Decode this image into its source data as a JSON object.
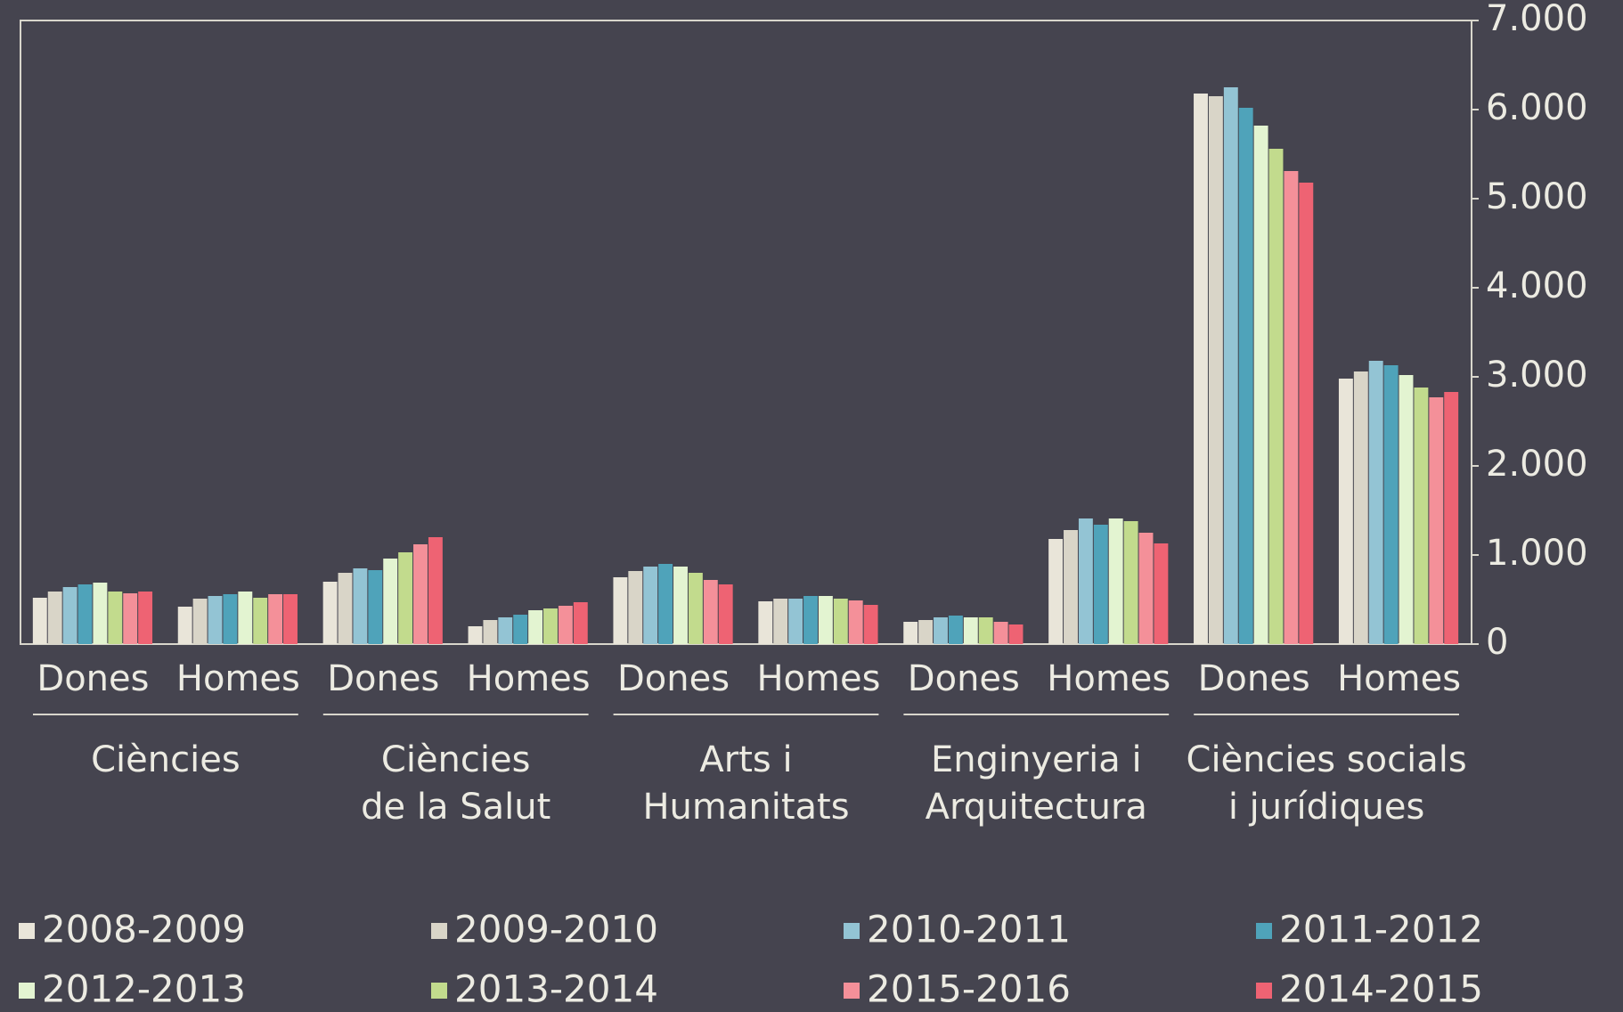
{
  "chart_data": {
    "type": "bar",
    "categories": [
      "Dones",
      "Homes",
      "Dones",
      "Homes",
      "Dones",
      "Homes",
      "Dones",
      "Homes",
      "Dones",
      "Homes"
    ],
    "groups": [
      [
        "Ciències"
      ],
      [
        "Ciències",
        "de la Salut"
      ],
      [
        "Arts i",
        "Humanitats"
      ],
      [
        "Enginyeria i",
        "Arquitectura"
      ],
      [
        "Ciències socials",
        "i jurídiques"
      ]
    ],
    "series": [
      {
        "name": "2008-2009",
        "color": "#e9e5d9",
        "values": [
          520,
          420,
          700,
          200,
          750,
          480,
          250,
          1180,
          6180,
          2980
        ]
      },
      {
        "name": "2009-2010",
        "color": "#d9d5c8",
        "values": [
          590,
          510,
          800,
          270,
          820,
          510,
          270,
          1280,
          6150,
          3060
        ]
      },
      {
        "name": "2010-2011",
        "color": "#93c4d4",
        "values": [
          640,
          540,
          850,
          300,
          870,
          510,
          300,
          1410,
          6250,
          3180
        ]
      },
      {
        "name": "2011-2012",
        "color": "#4fa3ba",
        "values": [
          670,
          560,
          830,
          330,
          900,
          540,
          320,
          1340,
          6020,
          3130
        ]
      },
      {
        "name": "2012-2013",
        "color": "#e3f4d1",
        "values": [
          690,
          590,
          960,
          380,
          870,
          540,
          300,
          1410,
          5820,
          3020
        ]
      },
      {
        "name": "2013-2014",
        "color": "#c2db8d",
        "values": [
          590,
          520,
          1030,
          400,
          800,
          510,
          300,
          1380,
          5560,
          2880
        ]
      },
      {
        "name": "2015-2016",
        "color": "#f49099",
        "values": [
          570,
          560,
          1120,
          430,
          720,
          490,
          250,
          1250,
          5310,
          2770
        ]
      },
      {
        "name": "2014-2015",
        "color": "#ee6373",
        "values": [
          590,
          560,
          1200,
          470,
          670,
          440,
          220,
          1130,
          5180,
          2830
        ]
      }
    ],
    "ylim": [
      0,
      7000
    ],
    "yticks": [
      0,
      {
        "value": 1000,
        "label": "1.000"
      },
      {
        "value": 2000,
        "label": "2.000"
      },
      {
        "value": 3000,
        "label": "3.000"
      },
      {
        "value": 4000,
        "label": "4.000"
      },
      {
        "value": 5000,
        "label": "5.000"
      },
      {
        "value": 6000,
        "label": "6.000"
      },
      {
        "value": 7000,
        "label": "7.000"
      }
    ]
  }
}
